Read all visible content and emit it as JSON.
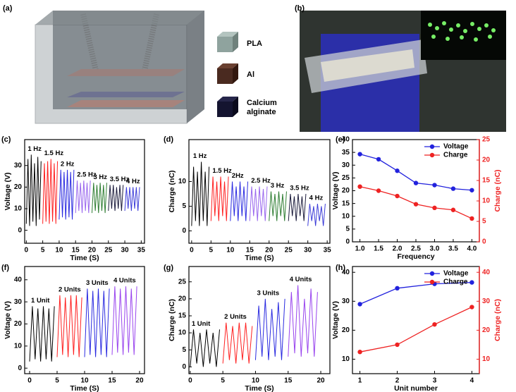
{
  "panel_labels": [
    "(a)",
    "(b)",
    "(c)",
    "(d)",
    "(e)",
    "(f)",
    "(g)",
    "(h)"
  ],
  "legend_a": [
    "PLA",
    "Al",
    "Calcium alginate"
  ],
  "chart_data": [
    {
      "type": "line",
      "xlabel": "Time (S)",
      "ylabel": "Voltage (V)",
      "xlim": [
        -0.5,
        36
      ],
      "ylim": [
        -6,
        42
      ],
      "xticks": [
        0,
        5,
        10,
        15,
        20,
        25,
        30,
        35
      ],
      "yticks": [
        0,
        10,
        20,
        30
      ],
      "series": [
        {
          "name": "1 Hz",
          "color": "#000000",
          "x": [
            0,
            0.5,
            1,
            1.5,
            2,
            2.5,
            3,
            3.5,
            4,
            4.5
          ],
          "values": [
            3,
            33,
            2,
            35,
            4,
            31,
            2,
            34,
            5,
            32
          ]
        },
        {
          "name": "1.5 Hz",
          "color": "#ff2020",
          "x": [
            5,
            5.5,
            6,
            6.5,
            7,
            7.5,
            8,
            8.5,
            9,
            9.5
          ],
          "values": [
            3,
            31,
            4,
            32,
            3,
            33,
            4,
            31,
            3,
            32
          ]
        },
        {
          "name": "2 Hz",
          "color": "#2a2ae0",
          "x": [
            10,
            10.5,
            11,
            11.5,
            12,
            12.5,
            13,
            13.5,
            14,
            14.5
          ],
          "values": [
            5,
            28,
            6,
            27,
            5,
            28,
            6,
            27,
            5,
            28
          ]
        },
        {
          "name": "2.5 Hz",
          "color": "#9966ee",
          "x": [
            15,
            15.5,
            16,
            16.5,
            17,
            17.5,
            18,
            18.5,
            19,
            19.5
          ],
          "values": [
            8,
            23,
            9,
            22,
            8,
            23,
            9,
            22,
            8,
            23
          ]
        },
        {
          "name": "3 Hz",
          "color": "#2e7d32",
          "x": [
            20,
            20.5,
            21,
            21.5,
            22,
            22.5,
            23,
            23.5,
            24,
            24.5
          ],
          "values": [
            8,
            22,
            9,
            21,
            8,
            22,
            9,
            21,
            8,
            22
          ]
        },
        {
          "name": "3.5 Hz",
          "color": "#1c1c3c",
          "x": [
            25,
            25.5,
            26,
            26.5,
            27,
            27.5,
            28,
            28.5,
            29,
            29.5
          ],
          "values": [
            9,
            21,
            10,
            21,
            9,
            20,
            10,
            21,
            9,
            21
          ]
        },
        {
          "name": "4 Hz",
          "color": "#3b3bd8",
          "x": [
            30,
            30.5,
            31,
            31.5,
            32,
            32.5,
            33,
            33.5,
            34,
            34.5
          ],
          "values": [
            9,
            20,
            10,
            20,
            9,
            20,
            10,
            20,
            9,
            20
          ]
        }
      ]
    },
    {
      "type": "line",
      "xlabel": "Time (S)",
      "ylabel": "Charge (nC)",
      "xlim": [
        -0.7,
        35.7
      ],
      "ylim": [
        -2.5,
        18.5
      ],
      "xticks": [
        0,
        5,
        10,
        15,
        20,
        25,
        30,
        35
      ],
      "yticks": [
        0,
        5,
        10
      ],
      "series": [
        {
          "name": "1 Hz",
          "color": "#000000",
          "x": [
            0,
            0.5,
            1,
            1.5,
            2,
            2.5,
            3,
            3.5,
            4,
            4.5
          ],
          "values": [
            1,
            13,
            2,
            12,
            1,
            14,
            2,
            12,
            1,
            13
          ]
        },
        {
          "name": "1.5 Hz",
          "color": "#ff2020",
          "x": [
            5,
            5.5,
            6,
            6.5,
            7,
            7.5,
            8,
            8.5,
            9,
            9.5
          ],
          "values": [
            2,
            11,
            3,
            10,
            2,
            11,
            3,
            10,
            2,
            11
          ]
        },
        {
          "name": "2Hz",
          "color": "#2a2ae0",
          "x": [
            10,
            10.5,
            11,
            11.5,
            12,
            12.5,
            13,
            13.5,
            14,
            14.5
          ],
          "values": [
            2,
            10,
            3,
            9,
            2,
            10,
            3,
            9,
            2,
            10
          ]
        },
        {
          "name": "2.5 Hz",
          "color": "#9966ee",
          "x": [
            15,
            15.5,
            16,
            16.5,
            17,
            17.5,
            18,
            18.5,
            19,
            19.5
          ],
          "values": [
            2,
            9,
            3,
            8.5,
            2,
            9,
            3,
            8.5,
            2,
            9
          ]
        },
        {
          "name": "3 Hz",
          "color": "#2e7d32",
          "x": [
            20,
            20.5,
            21,
            21.5,
            22,
            22.5,
            23,
            23.5,
            24,
            24.5
          ],
          "values": [
            2,
            8,
            3,
            7.5,
            2,
            8,
            3,
            7.5,
            2,
            8
          ]
        },
        {
          "name": "3.5 Hz",
          "color": "#1c1c3c",
          "x": [
            25,
            25.5,
            26,
            26.5,
            27,
            27.5,
            28,
            28.5,
            29,
            29.5
          ],
          "values": [
            2,
            7.5,
            3,
            7,
            2,
            7.5,
            3,
            7,
            2,
            7.5
          ]
        },
        {
          "name": "4 Hz",
          "color": "#3b3bd8",
          "x": [
            30,
            30.5,
            31,
            31.5,
            32,
            32.5,
            33,
            33.5,
            34,
            34.5
          ],
          "values": [
            1,
            5.5,
            2,
            5,
            1,
            5.5,
            2,
            5,
            1,
            5.5
          ]
        }
      ]
    },
    {
      "type": "line",
      "xlabel": "Frequency",
      "ylabel": "Voltage (V)",
      "y2label": "Charge (nC)",
      "markers": true,
      "legend": "upper right",
      "x": [
        1,
        1.5,
        2,
        2.5,
        3,
        3.5,
        4
      ],
      "xlim": [
        0.8,
        4.2
      ],
      "ylim": [
        0,
        40
      ],
      "y2lim": [
        0,
        25
      ],
      "xticks": [
        {
          "value": 1,
          "label": "1.0"
        },
        1.5,
        {
          "value": 2,
          "label": "2.0"
        },
        2.5,
        {
          "value": 3,
          "label": "3.0"
        },
        3.5,
        {
          "value": 4,
          "label": "4.0"
        }
      ],
      "yticks": [
        0,
        5,
        10,
        15,
        20,
        25,
        30,
        35,
        40
      ],
      "y2ticks": [
        0,
        5,
        10,
        15,
        20,
        25
      ],
      "series": [
        {
          "name": "Voltage",
          "color": "#2222dd",
          "values": [
            34.3,
            32.3,
            27.8,
            23,
            22.2,
            20.8,
            20.2
          ]
        },
        {
          "name": "Charge",
          "color": "#ee2222",
          "axis": "y2",
          "values": [
            13.5,
            12.5,
            11.2,
            9.2,
            8.3,
            7.8,
            5.7
          ]
        }
      ]
    },
    {
      "type": "line",
      "xlabel": "Time (S)",
      "ylabel": "Voltage (V)",
      "xlim": [
        -0.9,
        20.9
      ],
      "ylim": [
        -2.5,
        46
      ],
      "xticks": [
        0,
        5,
        10,
        15,
        20
      ],
      "yticks": [
        0,
        10,
        20,
        30,
        40
      ],
      "series": [
        {
          "name": "1 Unit",
          "color": "#000000",
          "x": [
            0,
            0.5,
            1,
            1.5,
            2,
            2.5,
            3,
            3.5,
            4,
            4.5
          ],
          "values": [
            3,
            28,
            4,
            27,
            3,
            28,
            4,
            27,
            3,
            28
          ]
        },
        {
          "name": "2 Units",
          "color": "#ff2020",
          "x": [
            5,
            5.5,
            6,
            6.5,
            7,
            7.5,
            8,
            8.5,
            9,
            9.5
          ],
          "values": [
            5,
            33,
            6,
            32,
            5,
            33,
            6,
            33,
            5,
            32
          ]
        },
        {
          "name": "3 Units",
          "color": "#2a2ae0",
          "x": [
            10,
            10.5,
            11,
            11.5,
            12,
            12.5,
            13,
            13.5,
            14,
            14.5
          ],
          "values": [
            5,
            36,
            6,
            35,
            5,
            36,
            6,
            35,
            5,
            36
          ]
        },
        {
          "name": "4 Units",
          "color": "#9944ee",
          "x": [
            15,
            15.5,
            16,
            16.5,
            17,
            17.5,
            18,
            18.5,
            19,
            19.5
          ],
          "values": [
            6,
            37,
            7,
            36,
            6,
            37,
            7,
            36,
            6,
            37
          ]
        }
      ]
    },
    {
      "type": "line",
      "xlabel": "Time (S)",
      "ylabel": "Charge (nC)",
      "xlim": [
        -0.2,
        21.4
      ],
      "ylim": [
        -2,
        29.5
      ],
      "xticks": [
        0,
        5,
        10,
        15,
        20
      ],
      "yticks": [
        0,
        5,
        10,
        15,
        20,
        25
      ],
      "series": [
        {
          "name": "1 Unit",
          "color": "#000000",
          "x": [
            0,
            0.5,
            1,
            1.5,
            2,
            2.5,
            3,
            3.5,
            4,
            4.5
          ],
          "values": [
            0,
            11,
            1,
            10,
            0,
            11,
            1,
            10,
            0,
            11
          ]
        },
        {
          "name": "2 Units",
          "color": "#ff2020",
          "x": [
            5,
            5.5,
            6,
            6.5,
            7,
            7.5,
            8,
            8.5,
            9,
            9.5
          ],
          "values": [
            1,
            13,
            2,
            12,
            1,
            13,
            2,
            13,
            1,
            12
          ]
        },
        {
          "name": "3 Units",
          "color": "#2a2ae0",
          "x": [
            10,
            10.5,
            11,
            11.5,
            12,
            12.5,
            13,
            13.5,
            14,
            14.5
          ],
          "values": [
            2,
            18,
            3,
            20,
            2,
            17,
            3,
            19,
            2,
            20
          ]
        },
        {
          "name": "4 Units",
          "color": "#9944ee",
          "x": [
            15,
            15.5,
            16,
            16.5,
            17,
            17.5,
            18,
            18.5,
            19,
            19.5
          ],
          "values": [
            3,
            22,
            4,
            24,
            3,
            20,
            4,
            23,
            3,
            22
          ]
        }
      ]
    },
    {
      "type": "line",
      "xlabel": "Unit number",
      "ylabel": "Voltage (V)",
      "y2label": "Charge (nC)",
      "markers": true,
      "legend": "upper right",
      "x": [
        1,
        2,
        3,
        4
      ],
      "xlim": [
        0.8,
        4.2
      ],
      "ylim": [
        5,
        42
      ],
      "y2lim": [
        5,
        42
      ],
      "xticks": [
        1,
        2,
        3,
        4
      ],
      "yticks": [
        10,
        20,
        30,
        40
      ],
      "y2ticks": [
        10,
        20,
        30,
        40
      ],
      "series": [
        {
          "name": "Voltage",
          "color": "#2222dd",
          "values": [
            29,
            34.5,
            36,
            36.5
          ]
        },
        {
          "name": "Charge",
          "color": "#ee2222",
          "axis": "y2",
          "values": [
            12.5,
            15,
            22,
            28
          ]
        }
      ]
    }
  ]
}
